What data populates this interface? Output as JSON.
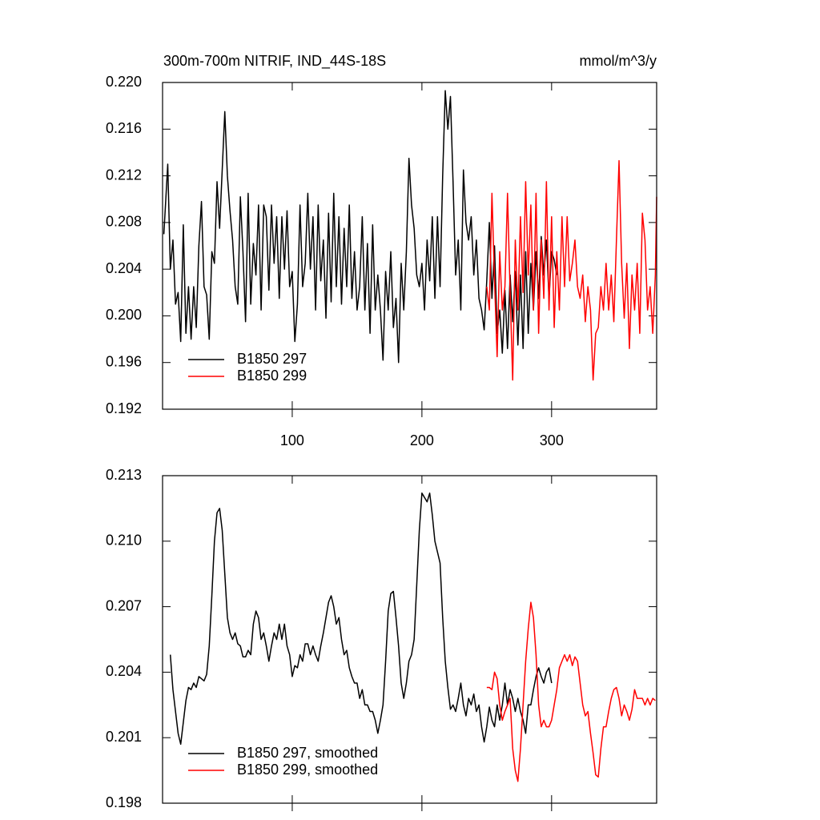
{
  "chart_data": [
    {
      "type": "line",
      "title": "300m-700m NITRIF, IND_44S-18S",
      "units": "mmol/m^3/y",
      "xlim": [
        0,
        381
      ],
      "xticks": [
        100,
        200,
        300
      ],
      "ylim": [
        0.192,
        0.22
      ],
      "yticks": [
        0.192,
        0.196,
        {
          "value": 0.2,
          "label": "0.200"
        },
        0.204,
        0.208,
        0.212,
        0.216,
        {
          "value": 0.22,
          "label": "0.220"
        }
      ],
      "legend": "lower left",
      "series": [
        {
          "name": "B1850 297",
          "color": "#000000",
          "x": [
            1,
            4,
            6,
            8,
            10,
            12,
            14,
            16,
            18,
            20,
            22,
            24,
            26,
            28,
            30,
            32,
            34,
            36,
            38,
            40,
            42,
            44,
            46,
            48,
            50,
            52,
            54,
            56,
            58,
            60,
            62,
            64,
            66,
            68,
            70,
            72,
            74,
            76,
            78,
            80,
            82,
            84,
            86,
            88,
            90,
            92,
            94,
            96,
            98,
            100,
            102,
            104,
            106,
            108,
            110,
            112,
            114,
            116,
            118,
            120,
            122,
            124,
            126,
            128,
            130,
            132,
            134,
            136,
            138,
            140,
            142,
            144,
            146,
            148,
            150,
            152,
            154,
            156,
            158,
            160,
            162,
            164,
            166,
            168,
            170,
            172,
            174,
            176,
            178,
            180,
            182,
            184,
            186,
            188,
            190,
            192,
            194,
            196,
            198,
            200,
            202,
            204,
            206,
            208,
            210,
            212,
            214,
            216,
            218,
            220,
            222,
            224,
            226,
            228,
            230,
            232,
            234,
            236,
            238,
            240,
            242,
            244,
            246,
            248,
            250,
            252,
            254,
            256,
            258,
            260,
            262,
            264,
            266,
            268,
            270,
            272,
            274,
            276,
            278,
            280,
            282,
            284,
            286,
            288,
            290,
            292,
            294,
            296,
            298,
            300,
            302,
            304
          ],
          "values": [
            0.207,
            0.213,
            0.204,
            0.2065,
            0.201,
            0.202,
            0.1978,
            0.2078,
            0.1985,
            0.2025,
            0.198,
            0.2025,
            0.199,
            0.206,
            0.2098,
            0.2025,
            0.2018,
            0.198,
            0.2055,
            0.2045,
            0.2115,
            0.2075,
            0.2125,
            0.2175,
            0.212,
            0.209,
            0.2065,
            0.2025,
            0.201,
            0.2102,
            0.2055,
            0.1995,
            0.2105,
            0.201,
            0.2062,
            0.2035,
            0.2095,
            0.2005,
            0.2095,
            0.2085,
            0.2022,
            0.2095,
            0.2045,
            0.2085,
            0.2015,
            0.2085,
            0.204,
            0.209,
            0.2025,
            0.2038,
            0.1978,
            0.201,
            0.2095,
            0.2025,
            0.2045,
            0.2105,
            0.204,
            0.2085,
            0.2005,
            0.2095,
            0.203,
            0.2065,
            0.1998,
            0.2088,
            0.2012,
            0.2105,
            0.2025,
            0.2085,
            0.201,
            0.2075,
            0.2025,
            0.2095,
            0.2015,
            0.2055,
            0.2005,
            0.2025,
            0.2085,
            0.2005,
            0.2062,
            0.1985,
            0.2078,
            0.2005,
            0.2035,
            0.2005,
            0.1962,
            0.2038,
            0.2005,
            0.2055,
            0.199,
            0.2015,
            0.196,
            0.2045,
            0.2005,
            0.2055,
            0.2135,
            0.2095,
            0.2075,
            0.2035,
            0.2025,
            0.2045,
            0.2005,
            0.2065,
            0.203,
            0.2085,
            0.2015,
            0.2085,
            0.2025,
            0.212,
            0.2193,
            0.216,
            0.2188,
            0.2115,
            0.2035,
            0.2065,
            0.2005,
            0.2125,
            0.208,
            0.2065,
            0.2085,
            0.2035,
            0.2065,
            0.2015,
            0.2005,
            0.1988,
            0.203,
            0.208,
            0.2015,
            0.206,
            0.1985,
            0.2005,
            0.1968,
            0.2022,
            0.1972,
            0.2035,
            0.1995,
            0.2038,
            0.1975,
            0.2035,
            0.1972,
            0.2055,
            0.1985,
            0.2045,
            0.2005,
            0.2055,
            0.2015,
            0.2068,
            0.2035,
            0.2065,
            0.2015,
            0.2055,
            0.2048,
            0.2035
          ]
        },
        {
          "name": "B1850 299",
          "color": "#ff0000",
          "x": [
            250,
            252,
            254,
            256,
            258,
            260,
            262,
            264,
            266,
            268,
            270,
            272,
            274,
            276,
            278,
            280,
            282,
            284,
            286,
            288,
            290,
            292,
            294,
            296,
            298,
            300,
            302,
            304,
            306,
            308,
            310,
            312,
            314,
            316,
            318,
            320,
            322,
            324,
            326,
            328,
            330,
            332,
            334,
            336,
            338,
            340,
            342,
            344,
            346,
            348,
            350,
            352,
            354,
            356,
            358,
            360,
            362,
            364,
            366,
            368,
            370,
            372,
            374,
            376,
            378,
            380,
            381
          ],
          "values": [
            0.2025,
            0.2005,
            0.2105,
            0.203,
            0.1965,
            0.2055,
            0.2005,
            0.2025,
            0.2105,
            0.202,
            0.1945,
            0.2065,
            0.2005,
            0.2085,
            0.202,
            0.2115,
            0.2035,
            0.2095,
            0.2005,
            0.2105,
            0.1985,
            0.2065,
            0.2015,
            0.2115,
            0.2005,
            0.2085,
            0.199,
            0.2055,
            0.2005,
            0.2085,
            0.2025,
            0.2085,
            0.203,
            0.2045,
            0.2065,
            0.2025,
            0.2015,
            0.2035,
            0.1995,
            0.2025,
            0.2005,
            0.1945,
            0.1985,
            0.199,
            0.2025,
            0.2005,
            0.2045,
            0.2005,
            0.2035,
            0.1995,
            0.2065,
            0.2133,
            0.2045,
            0.1998,
            0.2045,
            0.1972,
            0.2035,
            0.2005,
            0.2045,
            0.1985,
            0.2088,
            0.2065,
            0.2005,
            0.2025,
            0.1985,
            0.2035,
            0.2102
          ]
        }
      ]
    },
    {
      "type": "line",
      "xlim": [
        0,
        381
      ],
      "xticks": [
        100,
        200,
        300
      ],
      "xtick_labels": false,
      "ylim": [
        0.198,
        0.213
      ],
      "yticks": [
        0.198,
        0.201,
        0.204,
        0.207,
        {
          "value": 0.21,
          "label": "0.210"
        },
        0.213
      ],
      "legend": "lower left",
      "series": [
        {
          "name": "B1850 297, smoothed",
          "color": "#000000",
          "x": [
            6,
            8,
            10,
            12,
            14,
            16,
            18,
            20,
            22,
            24,
            26,
            28,
            30,
            32,
            34,
            36,
            38,
            40,
            42,
            44,
            46,
            48,
            50,
            52,
            54,
            56,
            58,
            60,
            62,
            64,
            66,
            68,
            70,
            72,
            74,
            76,
            78,
            80,
            82,
            84,
            86,
            88,
            90,
            92,
            94,
            96,
            98,
            100,
            102,
            104,
            106,
            108,
            110,
            112,
            114,
            116,
            118,
            120,
            122,
            124,
            126,
            128,
            130,
            132,
            134,
            136,
            138,
            140,
            142,
            144,
            146,
            148,
            150,
            152,
            154,
            156,
            158,
            160,
            162,
            164,
            166,
            168,
            170,
            172,
            174,
            176,
            178,
            180,
            182,
            184,
            186,
            188,
            190,
            192,
            194,
            196,
            198,
            200,
            202,
            204,
            206,
            208,
            210,
            212,
            214,
            216,
            218,
            220,
            222,
            224,
            226,
            228,
            230,
            232,
            234,
            236,
            238,
            240,
            242,
            244,
            246,
            248,
            250,
            252,
            254,
            256,
            258,
            260,
            262,
            264,
            266,
            268,
            270,
            272,
            274,
            276,
            278,
            280,
            282,
            284,
            286,
            288,
            290,
            292,
            294,
            296,
            298,
            300
          ],
          "values": [
            0.2048,
            0.2032,
            0.2022,
            0.2012,
            0.2007,
            0.2017,
            0.2027,
            0.2033,
            0.2032,
            0.2035,
            0.2033,
            0.2038,
            0.2037,
            0.2036,
            0.2039,
            0.2052,
            0.2075,
            0.21,
            0.2113,
            0.2115,
            0.2105,
            0.2085,
            0.2065,
            0.2058,
            0.2055,
            0.2058,
            0.2053,
            0.2052,
            0.2047,
            0.2047,
            0.205,
            0.2048,
            0.2062,
            0.2068,
            0.2065,
            0.2055,
            0.2058,
            0.2052,
            0.2045,
            0.2052,
            0.2058,
            0.2055,
            0.2062,
            0.2055,
            0.2062,
            0.2052,
            0.2048,
            0.2038,
            0.2043,
            0.2042,
            0.2048,
            0.2045,
            0.2053,
            0.2053,
            0.2048,
            0.2052,
            0.2048,
            0.2045,
            0.2052,
            0.2058,
            0.2065,
            0.2072,
            0.2075,
            0.207,
            0.2062,
            0.2065,
            0.2055,
            0.2048,
            0.205,
            0.2042,
            0.2038,
            0.2035,
            0.2035,
            0.2028,
            0.2032,
            0.2025,
            0.2025,
            0.2022,
            0.2022,
            0.2018,
            0.2012,
            0.2018,
            0.2025,
            0.2045,
            0.2068,
            0.2076,
            0.2077,
            0.2065,
            0.2052,
            0.2035,
            0.2028,
            0.2035,
            0.2045,
            0.2048,
            0.2055,
            0.208,
            0.2105,
            0.2122,
            0.212,
            0.2118,
            0.2122,
            0.2112,
            0.21,
            0.2095,
            0.209,
            0.2065,
            0.2045,
            0.2033,
            0.2023,
            0.2025,
            0.2022,
            0.2028,
            0.2035,
            0.2025,
            0.202,
            0.2028,
            0.2025,
            0.203,
            0.2022,
            0.2025,
            0.2015,
            0.2008,
            0.2015,
            0.2024,
            0.2018,
            0.2015,
            0.2025,
            0.2018,
            0.2025,
            0.2035,
            0.2025,
            0.2032,
            0.2028,
            0.2022,
            0.2028,
            0.2022,
            0.2018,
            0.2012,
            0.2025,
            0.2025,
            0.2032,
            0.2038,
            0.2042,
            0.2038,
            0.2035,
            0.204,
            0.2042,
            0.2035
          ]
        },
        {
          "name": "B1850 299, smoothed",
          "color": "#ff0000",
          "x": [
            250,
            252,
            254,
            256,
            258,
            260,
            262,
            264,
            266,
            268,
            270,
            272,
            274,
            276,
            278,
            280,
            282,
            284,
            286,
            288,
            290,
            292,
            294,
            296,
            298,
            300,
            302,
            304,
            306,
            308,
            310,
            312,
            314,
            316,
            318,
            320,
            322,
            324,
            326,
            328,
            330,
            332,
            334,
            336,
            338,
            340,
            342,
            344,
            346,
            348,
            350,
            352,
            354,
            356,
            358,
            360,
            362,
            364,
            366,
            368,
            370,
            372,
            374,
            376,
            378,
            380
          ],
          "values": [
            0.2033,
            0.2033,
            0.2032,
            0.204,
            0.2037,
            0.2025,
            0.2018,
            0.2022,
            0.2025,
            0.2028,
            0.2005,
            0.1995,
            0.199,
            0.2005,
            0.2025,
            0.2045,
            0.206,
            0.2072,
            0.2065,
            0.2048,
            0.2025,
            0.2015,
            0.2018,
            0.2015,
            0.2015,
            0.2018,
            0.2025,
            0.2032,
            0.2042,
            0.2045,
            0.2048,
            0.2045,
            0.2048,
            0.2043,
            0.2047,
            0.2045,
            0.2035,
            0.2025,
            0.202,
            0.2022,
            0.2012,
            0.2003,
            0.1993,
            0.1992,
            0.2005,
            0.2015,
            0.2015,
            0.2022,
            0.2028,
            0.2032,
            0.2033,
            0.2028,
            0.202,
            0.2025,
            0.2022,
            0.2018,
            0.2023,
            0.2032,
            0.2028,
            0.2028,
            0.2028,
            0.2025,
            0.2028,
            0.2025,
            0.2028,
            0.2027
          ]
        }
      ]
    }
  ]
}
